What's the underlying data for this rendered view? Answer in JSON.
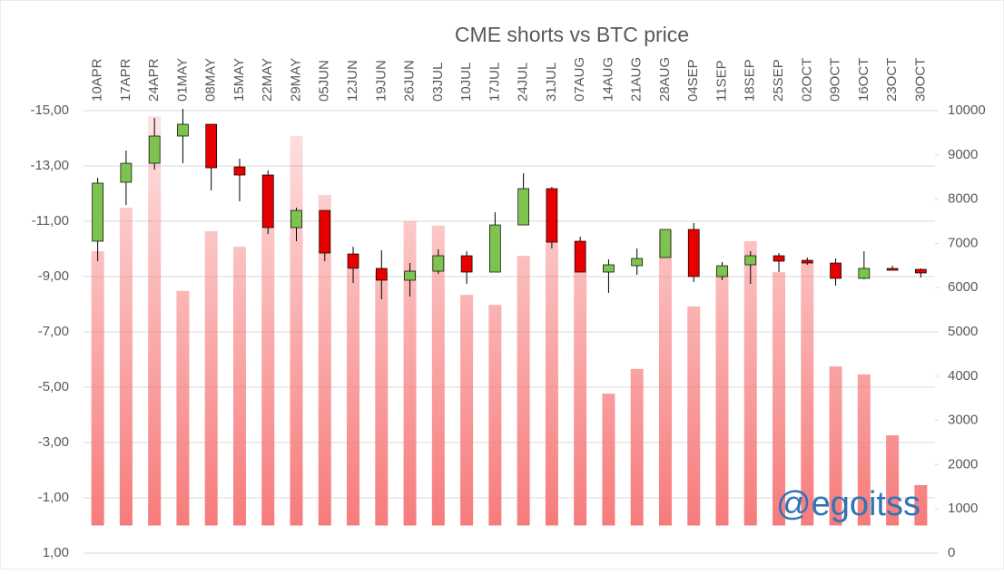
{
  "chart_data": {
    "type": "combo",
    "title": "CME shorts vs BTC price",
    "annotation": "@egoitss",
    "categories": [
      "10APR",
      "17APR",
      "24APR",
      "01MAY",
      "08MAY",
      "15MAY",
      "22MAY",
      "29MAY",
      "05JUN",
      "12JUN",
      "19JUN",
      "26JUN",
      "03JUL",
      "10JUL",
      "17JUL",
      "24JUL",
      "31JUL",
      "07AUG",
      "14AUG",
      "21AUG",
      "28AUG",
      "04SEP",
      "11SEP",
      "18SEP",
      "25SEP",
      "02OCT",
      "09OCT",
      "16OCT",
      "23OCT",
      "30OCT"
    ],
    "ylim": [
      1,
      -15
    ],
    "yticks": [
      {
        "value": 1,
        "label": "1,00"
      },
      {
        "value": -1,
        "label": "-1,00"
      },
      {
        "value": -3,
        "label": "-3,00"
      },
      {
        "value": -5,
        "label": "-5,00"
      },
      {
        "value": -7,
        "label": "-7,00"
      },
      {
        "value": -9,
        "label": "-9,00"
      },
      {
        "value": -11,
        "label": "-11,00"
      },
      {
        "value": -13,
        "label": "-13,00"
      },
      {
        "value": -15,
        "label": "-15,00"
      }
    ],
    "y2lim": [
      0,
      10000
    ],
    "y2ticks": [
      0,
      1000,
      2000,
      3000,
      4000,
      5000,
      6000,
      7000,
      8000,
      9000,
      10000
    ],
    "grid": true,
    "series": [
      {
        "type": "bar",
        "color": "#f77b7b",
        "values": [
          -9.92,
          -11.49,
          -14.8,
          -8.48,
          -10.64,
          -10.08,
          -12.7,
          -14.08,
          -11.95,
          -9.26,
          -9.16,
          -11.0,
          -10.84,
          -8.34,
          -7.98,
          -9.75,
          -10.31,
          -9.16,
          -4.77,
          -5.66,
          -10.64,
          -7.92,
          -9.16,
          -10.28,
          -9.16,
          -9.5,
          -5.75,
          -5.46,
          -3.26,
          -1.46
        ]
      },
      {
        "type": "candlestick",
        "axis": "y2",
        "up_color": "#7dc34f",
        "down_color": "#e60000",
        "open": [
          7049,
          8381,
          8811,
          9426,
          9692,
          8729,
          8544,
          7356,
          7745,
          6762,
          6434,
          6168,
          6372,
          6721,
          6352,
          7417,
          8237,
          7049,
          6352,
          6495,
          6680,
          7315,
          6250,
          6516,
          6721,
          6618,
          6557,
          6209,
          6434,
          6413
        ],
        "high": [
          8484,
          9098,
          9835,
          10040,
          9692,
          8913,
          8647,
          7807,
          7745,
          6926,
          6844,
          6557,
          6864,
          6823,
          7704,
          8585,
          8278,
          7151,
          6639,
          6885,
          7315,
          7458,
          6577,
          6823,
          6782,
          6680,
          6659,
          6823,
          6495,
          6434
        ],
        "low": [
          6598,
          7868,
          8667,
          8811,
          8196,
          7950,
          7212,
          7049,
          6598,
          6106,
          5737,
          5799,
          6311,
          6086,
          6352,
          7417,
          6885,
          6352,
          5881,
          6291,
          6680,
          6127,
          6168,
          6086,
          6352,
          6516,
          6045,
          6188,
          6393,
          6229
        ],
        "close": [
          8361,
          8811,
          9426,
          9692,
          8708,
          8544,
          7356,
          7745,
          6782,
          6434,
          6168,
          6372,
          6721,
          6352,
          7417,
          8237,
          7028,
          6352,
          6516,
          6659,
          7315,
          6250,
          6495,
          6721,
          6598,
          6557,
          6209,
          6434,
          6393,
          6332
        ]
      }
    ]
  }
}
